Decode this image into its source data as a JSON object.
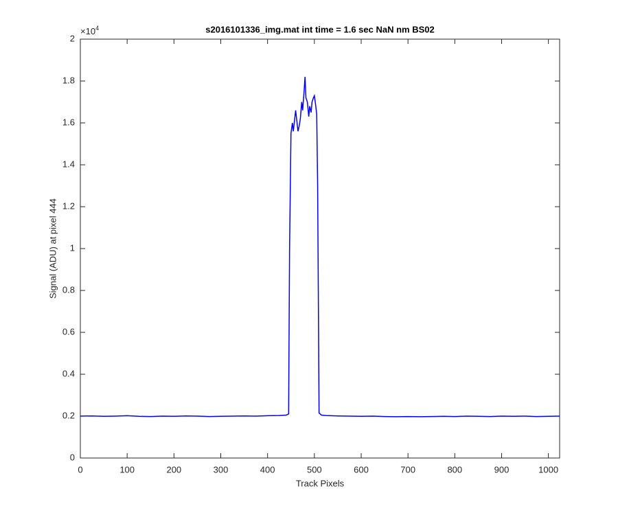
{
  "chart_data": {
    "type": "line",
    "title": "s2016101336_img.mat int time = 1.6 sec  NaN nm BS02",
    "x_label": "Track Pixels",
    "y_label": "Signal (ADU) at pixel 444",
    "y_multiplier": {
      "base": "×10",
      "power": "4"
    },
    "color": "#0000ff",
    "x": [
      0,
      25,
      50,
      75,
      100,
      125,
      150,
      175,
      200,
      225,
      250,
      275,
      300,
      325,
      350,
      375,
      400,
      425,
      440,
      445,
      447,
      450,
      453,
      455,
      458,
      460,
      463,
      465,
      468,
      470,
      473,
      475,
      478,
      480,
      482,
      485,
      488,
      490,
      493,
      495,
      498,
      500,
      503,
      505,
      507,
      510,
      515,
      525,
      550,
      575,
      600,
      625,
      650,
      675,
      700,
      725,
      750,
      775,
      800,
      825,
      850,
      875,
      900,
      925,
      950,
      975,
      1000,
      1024
    ],
    "values": [
      0.2,
      0.201,
      0.199,
      0.2,
      0.202,
      0.199,
      0.198,
      0.2,
      0.199,
      0.201,
      0.2,
      0.198,
      0.199,
      0.2,
      0.201,
      0.2,
      0.202,
      0.203,
      0.205,
      0.21,
      1.0,
      1.55,
      1.6,
      1.56,
      1.62,
      1.66,
      1.6,
      1.56,
      1.59,
      1.62,
      1.7,
      1.66,
      1.75,
      1.82,
      1.72,
      1.7,
      1.63,
      1.68,
      1.65,
      1.7,
      1.72,
      1.73,
      1.68,
      1.64,
      1.3,
      0.215,
      0.205,
      0.203,
      0.201,
      0.2,
      0.199,
      0.2,
      0.198,
      0.197,
      0.198,
      0.197,
      0.198,
      0.199,
      0.198,
      0.2,
      0.199,
      0.198,
      0.2,
      0.199,
      0.2,
      0.198,
      0.199,
      0.2
    ],
    "xlim": [
      0,
      1024
    ],
    "xticks": [
      0,
      100,
      200,
      300,
      400,
      500,
      600,
      700,
      800,
      900,
      1000
    ],
    "ylim": [
      0,
      2
    ],
    "yticks": [
      0,
      0.2,
      0.4,
      0.6,
      0.8,
      1,
      1.2,
      1.4,
      1.6,
      1.8,
      2
    ]
  }
}
